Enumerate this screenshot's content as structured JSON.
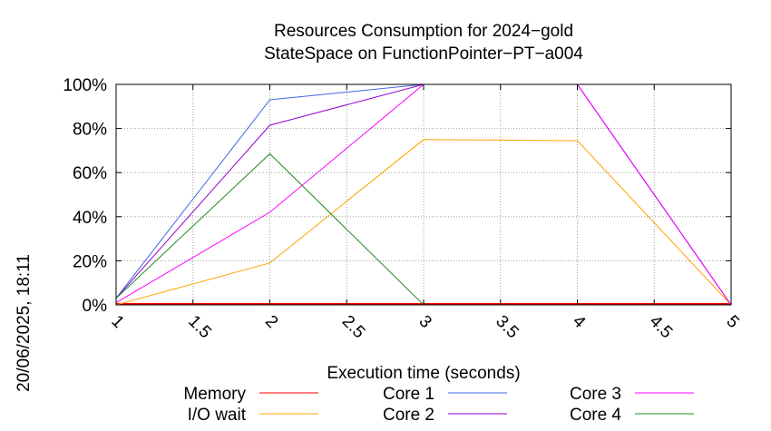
{
  "chart_data": {
    "type": "line",
    "title": [
      "Resources Consumption for 2024−gold",
      "StateSpace on FunctionPointer−PT−a004"
    ],
    "xlabel": "Execution time (seconds)",
    "ylabel": "",
    "side_label": "20/06/2025, 18:11",
    "xlim": [
      1,
      5
    ],
    "ylim": [
      0,
      100
    ],
    "x_ticks": [
      1,
      1.5,
      2,
      2.5,
      3,
      3.5,
      4,
      4.5,
      5
    ],
    "x_tick_labels": [
      "1",
      "1.5",
      "2",
      "2.5",
      "3",
      "3.5",
      "4",
      "4.5",
      "5"
    ],
    "y_ticks": [
      0,
      20,
      40,
      60,
      80,
      100
    ],
    "y_tick_labels": [
      "0%",
      "20%",
      "40%",
      "60%",
      "80%",
      "100%"
    ],
    "grid": true,
    "legend_position": "bottom",
    "series": [
      {
        "name": "Memory",
        "color": "#ff0000",
        "x": [
          1,
          2,
          3,
          4,
          5
        ],
        "y": [
          0.3,
          0.3,
          0.3,
          0.3,
          0.3
        ]
      },
      {
        "name": "I/O wait",
        "color": "#ffa500",
        "x": [
          1,
          2,
          3,
          4,
          5
        ],
        "y": [
          0,
          19,
          75,
          74.5,
          0
        ]
      },
      {
        "name": "Core 1",
        "color": "#4169e1",
        "x": [
          1,
          2,
          3,
          4,
          5
        ],
        "y": [
          3,
          93,
          100,
          100,
          0
        ]
      },
      {
        "name": "Core 2",
        "color": "#9400d3",
        "x": [
          1,
          2,
          3,
          4,
          5
        ],
        "y": [
          3,
          81.5,
          100,
          100,
          0
        ]
      },
      {
        "name": "Core 3",
        "color": "#ff00ff",
        "x": [
          1,
          2,
          3,
          4,
          5
        ],
        "y": [
          1,
          42,
          100,
          100,
          0
        ]
      },
      {
        "name": "Core 4",
        "color": "#228b22",
        "x": [
          1,
          2,
          3,
          4,
          5
        ],
        "y": [
          3,
          68.5,
          0,
          0,
          0
        ]
      }
    ]
  }
}
